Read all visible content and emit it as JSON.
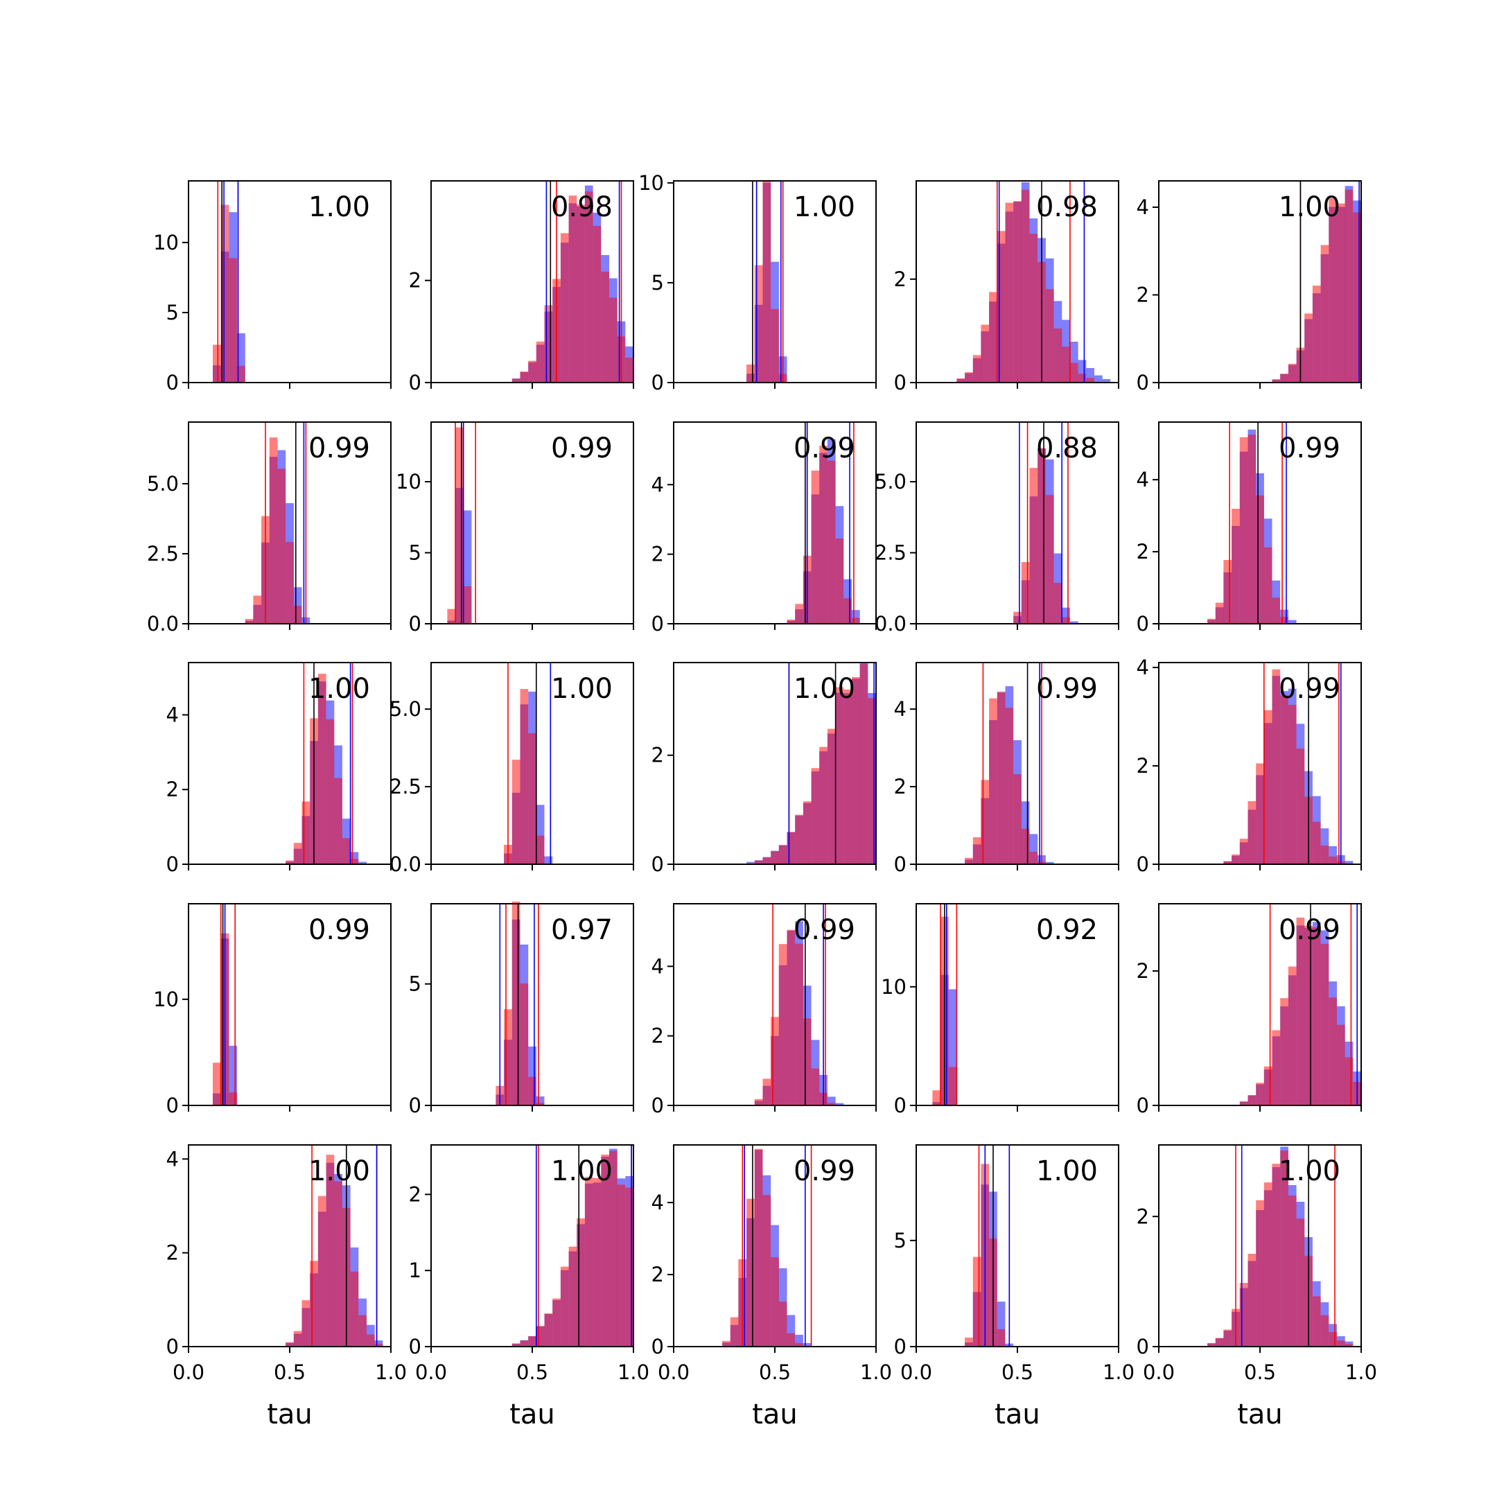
{
  "colors": {
    "series_a": "#0000ff",
    "series_b": "#ff0000",
    "overlap": "#c4366a",
    "median": "#000000"
  },
  "chart_data": [
    {
      "type": "bar",
      "row": 0,
      "col": 0,
      "annotation": "1.00",
      "x_ticks": [],
      "y_ticks": [
        "0",
        "5",
        "10"
      ],
      "ylim": [
        0,
        14.4
      ],
      "mode": 0.2,
      "spread": 0.03,
      "skew": 0,
      "peak": 14.0,
      "lines": {
        "red": [
          0.145,
          0.245
        ],
        "blue": [
          0.175,
          0.245
        ],
        "black": [
          0.165
        ]
      }
    },
    {
      "type": "bar",
      "row": 0,
      "col": 1,
      "annotation": "0.98",
      "x_ticks": [],
      "y_ticks": [
        "0",
        "2"
      ],
      "ylim": [
        0,
        3.95
      ],
      "mode": 0.75,
      "spread": 0.12,
      "skew": 0,
      "peak": 3.75,
      "lines": {
        "red": [
          0.62,
          0.94
        ],
        "blue": [
          0.57,
          0.93
        ],
        "black": [
          0.59
        ]
      }
    },
    {
      "type": "bar",
      "row": 0,
      "col": 2,
      "annotation": "1.00",
      "x_ticks": [],
      "y_ticks": [
        "0",
        "5",
        "10"
      ],
      "ylim": [
        0,
        10.1
      ],
      "mode": 0.46,
      "spread": 0.035,
      "skew": 0,
      "peak": 9.7,
      "lines": {
        "red": [
          0.41,
          0.54
        ],
        "blue": [
          0.41,
          0.53
        ],
        "black": [
          0.39
        ]
      }
    },
    {
      "type": "bar",
      "row": 0,
      "col": 3,
      "annotation": "0.98",
      "x_ticks": [],
      "y_ticks": [
        "0",
        "2"
      ],
      "ylim": [
        0,
        3.9
      ],
      "mode": 0.5,
      "spread": 0.1,
      "skew": 0.18,
      "peak": 3.7,
      "lines": {
        "red": [
          0.4,
          0.76
        ],
        "blue": [
          0.41,
          0.83
        ],
        "black": [
          0.62
        ]
      }
    },
    {
      "type": "bar",
      "row": 0,
      "col": 4,
      "annotation": "1.00",
      "x_ticks": [],
      "y_ticks": [
        "0",
        "2",
        "4"
      ],
      "ylim": [
        0,
        4.6
      ],
      "mode": 0.92,
      "spread": 0.12,
      "skew": 0,
      "peak": 4.4,
      "lines": {
        "red": [
          0.7,
          1.0
        ],
        "blue": [
          0.99
        ],
        "black": [
          0.7
        ]
      }
    },
    {
      "type": "bar",
      "row": 1,
      "col": 0,
      "annotation": "0.99",
      "x_ticks": [],
      "y_ticks": [
        "0.0",
        "2.5",
        "5.0"
      ],
      "ylim": [
        0,
        7.2
      ],
      "mode": 0.44,
      "spread": 0.05,
      "skew": 0,
      "peak": 6.8,
      "lines": {
        "red": [
          0.38,
          0.58
        ],
        "blue": [
          0.57
        ],
        "black": [
          0.53
        ]
      }
    },
    {
      "type": "bar",
      "row": 1,
      "col": 1,
      "annotation": "0.99",
      "x_ticks": [],
      "y_ticks": [
        "0",
        "5",
        "10"
      ],
      "ylim": [
        0,
        14.2
      ],
      "mode": 0.15,
      "spread": 0.02,
      "skew": 0,
      "peak": 13.8,
      "lines": {
        "red": [
          0.12,
          0.22
        ],
        "blue": [
          0.16
        ],
        "black": [
          0.15
        ]
      }
    },
    {
      "type": "bar",
      "row": 1,
      "col": 2,
      "annotation": "0.99",
      "x_ticks": [],
      "y_ticks": [
        "0",
        "2",
        "4"
      ],
      "ylim": [
        0,
        5.8
      ],
      "mode": 0.75,
      "spread": 0.06,
      "skew": 0,
      "peak": 5.5,
      "lines": {
        "red": [
          0.66,
          0.89
        ],
        "blue": [
          0.66,
          0.87
        ],
        "black": [
          0.65
        ]
      }
    },
    {
      "type": "bar",
      "row": 1,
      "col": 3,
      "annotation": "0.88",
      "x_ticks": [],
      "y_ticks": [
        "0.0",
        "2.5",
        "5.0"
      ],
      "ylim": [
        0,
        7.1
      ],
      "mode": 0.62,
      "spread": 0.05,
      "skew": 0,
      "peak": 6.7,
      "lines": {
        "red": [
          0.55,
          0.75
        ],
        "blue": [
          0.51,
          0.72
        ],
        "black": [
          0.63
        ]
      }
    },
    {
      "type": "bar",
      "row": 1,
      "col": 4,
      "annotation": "0.99",
      "x_ticks": [],
      "y_ticks": [
        "0",
        "2",
        "4"
      ],
      "ylim": [
        0,
        5.6
      ],
      "mode": 0.45,
      "spread": 0.07,
      "skew": 0,
      "peak": 5.3,
      "lines": {
        "red": [
          0.35,
          0.61
        ],
        "blue": [
          0.63
        ],
        "black": [
          0.49
        ]
      }
    },
    {
      "type": "bar",
      "row": 2,
      "col": 0,
      "annotation": "1.00",
      "x_ticks": [],
      "y_ticks": [
        "0",
        "2",
        "4"
      ],
      "ylim": [
        0,
        5.4
      ],
      "mode": 0.67,
      "spread": 0.06,
      "skew": 0,
      "peak": 5.0,
      "lines": {
        "red": [
          0.57,
          0.81
        ],
        "blue": [
          0.8
        ],
        "black": [
          0.62
        ]
      }
    },
    {
      "type": "bar",
      "row": 2,
      "col": 1,
      "annotation": "1.00",
      "x_ticks": [],
      "y_ticks": [
        "0.0",
        "2.5",
        "5.0"
      ],
      "ylim": [
        0,
        6.5
      ],
      "mode": 0.47,
      "spread": 0.04,
      "skew": 0,
      "peak": 6.1,
      "lines": {
        "red": [
          0.38,
          0.59
        ],
        "blue": [
          0.59
        ],
        "black": [
          0.52
        ]
      }
    },
    {
      "type": "bar",
      "row": 2,
      "col": 2,
      "annotation": "1.00",
      "x_ticks": [],
      "y_ticks": [
        "0",
        "2"
      ],
      "ylim": [
        0,
        3.7
      ],
      "mode": 0.92,
      "spread": 0.18,
      "skew": 0,
      "peak": 3.5,
      "lines": {
        "red": [
          0.57,
          1.0
        ],
        "blue": [
          0.57,
          0.99
        ],
        "black": [
          0.8
        ]
      }
    },
    {
      "type": "bar",
      "row": 2,
      "col": 3,
      "annotation": "0.99",
      "x_ticks": [],
      "y_ticks": [
        "0",
        "2",
        "4"
      ],
      "ylim": [
        0,
        5.2
      ],
      "mode": 0.42,
      "spread": 0.06,
      "skew": 0.1,
      "peak": 4.8,
      "lines": {
        "red": [
          0.33,
          0.62
        ],
        "blue": [
          0.61
        ],
        "black": [
          0.55
        ]
      }
    },
    {
      "type": "bar",
      "row": 2,
      "col": 4,
      "annotation": "0.99",
      "x_ticks": [],
      "y_ticks": [
        "0",
        "2",
        "4"
      ],
      "ylim": [
        0,
        4.1
      ],
      "mode": 0.6,
      "spread": 0.09,
      "skew": 0.1,
      "peak": 3.8,
      "lines": {
        "red": [
          0.52,
          0.89
        ],
        "blue": [
          0.9
        ],
        "black": [
          0.74
        ]
      }
    },
    {
      "type": "bar",
      "row": 3,
      "col": 0,
      "annotation": "0.99",
      "x_ticks": [],
      "y_ticks": [
        "0",
        "10"
      ],
      "ylim": [
        0,
        19
      ],
      "mode": 0.18,
      "spread": 0.02,
      "skew": 0,
      "peak": 18.0,
      "lines": {
        "red": [
          0.16,
          0.23
        ],
        "blue": [
          0.18
        ],
        "black": [
          0.17
        ]
      }
    },
    {
      "type": "bar",
      "row": 3,
      "col": 1,
      "annotation": "0.97",
      "x_ticks": [],
      "y_ticks": [
        "0",
        "5"
      ],
      "ylim": [
        0,
        8.3
      ],
      "mode": 0.43,
      "spread": 0.04,
      "skew": 0,
      "peak": 7.9,
      "lines": {
        "red": [
          0.37,
          0.53
        ],
        "blue": [
          0.34,
          0.51
        ],
        "black": [
          0.43
        ]
      }
    },
    {
      "type": "bar",
      "row": 3,
      "col": 2,
      "annotation": "0.99",
      "x_ticks": [],
      "y_ticks": [
        "0",
        "2",
        "4"
      ],
      "ylim": [
        0,
        5.8
      ],
      "mode": 0.58,
      "spread": 0.06,
      "skew": 0.1,
      "peak": 5.4,
      "lines": {
        "red": [
          0.49,
          0.75
        ],
        "blue": [
          0.74
        ],
        "black": [
          0.65
        ]
      }
    },
    {
      "type": "bar",
      "row": 3,
      "col": 3,
      "annotation": "0.92",
      "x_ticks": [],
      "y_ticks": [
        "0",
        "10"
      ],
      "ylim": [
        0,
        17
      ],
      "mode": 0.15,
      "spread": 0.02,
      "skew": 0,
      "peak": 16.5,
      "lines": {
        "red": [
          0.12,
          0.2
        ],
        "blue": [
          0.15
        ],
        "black": [
          0.14
        ]
      }
    },
    {
      "type": "bar",
      "row": 3,
      "col": 4,
      "annotation": "0.99",
      "x_ticks": [],
      "y_ticks": [
        "0",
        "2"
      ],
      "ylim": [
        0,
        3.0
      ],
      "mode": 0.75,
      "spread": 0.12,
      "skew": 0,
      "peak": 2.8,
      "lines": {
        "red": [
          0.55,
          0.95
        ],
        "blue": [
          0.98
        ],
        "black": [
          0.75
        ]
      }
    },
    {
      "type": "bar",
      "row": 4,
      "col": 0,
      "annotation": "1.00",
      "x_ticks": [
        "0.0",
        "0.5",
        "1.0"
      ],
      "xlabel": "tau",
      "y_ticks": [
        "0",
        "2",
        "4"
      ],
      "ylim": [
        0,
        4.3
      ],
      "mode": 0.72,
      "spread": 0.08,
      "skew": 0,
      "peak": 4.0,
      "lines": {
        "red": [
          0.61,
          0.93
        ],
        "blue": [
          0.93
        ],
        "black": [
          0.78
        ]
      }
    },
    {
      "type": "bar",
      "row": 4,
      "col": 1,
      "annotation": "1.00",
      "x_ticks": [
        "0.0",
        "0.5",
        "1.0"
      ],
      "xlabel": "tau",
      "y_ticks": [
        "0",
        "1",
        "2"
      ],
      "ylim": [
        0,
        2.65
      ],
      "mode": 0.88,
      "spread": 0.16,
      "skew": 0,
      "peak": 2.5,
      "lines": {
        "red": [
          0.53,
          0.99
        ],
        "blue": [
          0.52,
          0.99
        ],
        "black": [
          0.73
        ]
      }
    },
    {
      "type": "bar",
      "row": 4,
      "col": 2,
      "annotation": "0.99",
      "x_ticks": [
        "0.0",
        "0.5",
        "1.0"
      ],
      "xlabel": "tau",
      "y_ticks": [
        "0",
        "2",
        "4"
      ],
      "ylim": [
        0,
        5.6
      ],
      "mode": 0.42,
      "spread": 0.06,
      "skew": 0.12,
      "peak": 5.2,
      "lines": {
        "red": [
          0.34,
          0.68
        ],
        "blue": [
          0.35,
          0.65
        ],
        "black": [
          0.39
        ]
      }
    },
    {
      "type": "bar",
      "row": 4,
      "col": 3,
      "annotation": "1.00",
      "x_ticks": [
        "0.0",
        "0.5",
        "1.0"
      ],
      "xlabel": "tau",
      "y_ticks": [
        "0",
        "5"
      ],
      "ylim": [
        0,
        9.5
      ],
      "mode": 0.35,
      "spread": 0.035,
      "skew": 0,
      "peak": 9.0,
      "lines": {
        "red": [
          0.31,
          0.46
        ],
        "blue": [
          0.34,
          0.46
        ],
        "black": [
          0.38
        ]
      }
    },
    {
      "type": "bar",
      "row": 4,
      "col": 4,
      "annotation": "1.00",
      "x_ticks": [
        "0.0",
        "0.5",
        "1.0"
      ],
      "xlabel": "tau",
      "y_ticks": [
        "0",
        "2"
      ],
      "ylim": [
        0,
        3.1
      ],
      "mode": 0.6,
      "spread": 0.12,
      "skew": 0,
      "peak": 2.9,
      "lines": {
        "red": [
          0.38,
          0.87
        ],
        "blue": [
          0.41
        ],
        "black": [
          0.74
        ]
      }
    }
  ]
}
